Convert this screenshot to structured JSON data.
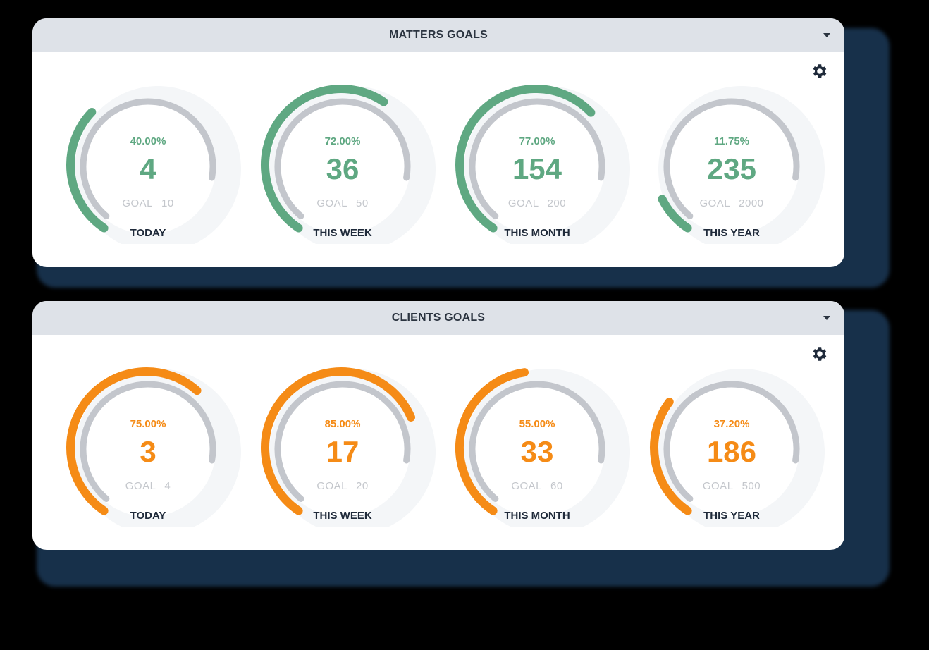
{
  "colors": {
    "matters_accent": "#5fa882",
    "clients_accent": "#f58b16",
    "track": "#c3c6cc",
    "header_bg": "#dee2e8",
    "title_text": "#2b3440"
  },
  "panels": [
    {
      "title": "MATTERS GOALS",
      "collapse_icon": "caret-down-icon",
      "settings_icon": "gear-icon",
      "accent": "#5fa882",
      "gauges": [
        {
          "period": "TODAY",
          "percent": "40.00%",
          "value": "4",
          "goal_label": "GOAL",
          "goal": "10",
          "fraction": 0.4
        },
        {
          "period": "THIS WEEK",
          "percent": "72.00%",
          "value": "36",
          "goal_label": "GOAL",
          "goal": "50",
          "fraction": 0.72
        },
        {
          "period": "THIS MONTH",
          "percent": "77.00%",
          "value": "154",
          "goal_label": "GOAL",
          "goal": "200",
          "fraction": 0.77
        },
        {
          "period": "THIS YEAR",
          "percent": "11.75%",
          "value": "235",
          "goal_label": "GOAL",
          "goal": "2000",
          "fraction": 0.1175
        }
      ]
    },
    {
      "title": "CLIENTS GOALS",
      "collapse_icon": "caret-down-icon",
      "settings_icon": "gear-icon",
      "accent": "#f58b16",
      "gauges": [
        {
          "period": "TODAY",
          "percent": "75.00%",
          "value": "3",
          "goal_label": "GOAL",
          "goal": "4",
          "fraction": 0.75
        },
        {
          "period": "THIS WEEK",
          "percent": "85.00%",
          "value": "17",
          "goal_label": "GOAL",
          "goal": "20",
          "fraction": 0.85
        },
        {
          "period": "THIS MONTH",
          "percent": "55.00%",
          "value": "33",
          "goal_label": "GOAL",
          "goal": "60",
          "fraction": 0.55
        },
        {
          "period": "THIS YEAR",
          "percent": "37.20%",
          "value": "186",
          "goal_label": "GOAL",
          "goal": "500",
          "fraction": 0.372
        }
      ]
    }
  ]
}
